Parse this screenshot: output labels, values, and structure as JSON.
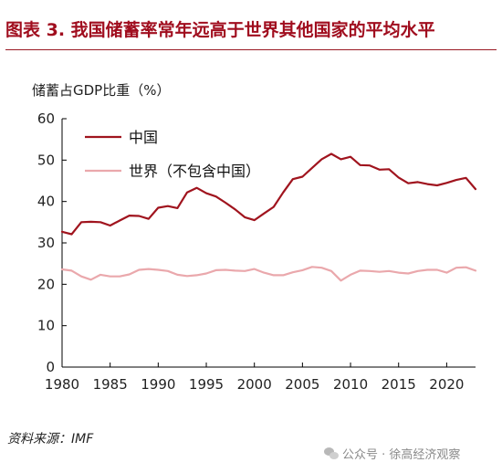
{
  "figure_title": "图表  3.    我国储蓄率常年远高于世界其他国家的平均水平",
  "source": "资料来源：IMF",
  "watermark": "公众号 · 徐高经济观察",
  "colors": {
    "title": "#a00d1e",
    "china": "#a0141e",
    "world": "#eaa8ac"
  },
  "chart_data": {
    "type": "line",
    "title": "",
    "xlabel": "",
    "ylabel": "储蓄占GDP比重（%）",
    "xlim": [
      1980,
      2023
    ],
    "ylim": [
      0,
      60
    ],
    "x_ticks": [
      "1980",
      "1985",
      "1990",
      "1995",
      "2000",
      "2005",
      "2010",
      "2015",
      "2020"
    ],
    "y_ticks": [
      "0",
      "10",
      "20",
      "30",
      "40",
      "50",
      "60"
    ],
    "grid": false,
    "legend_position": "top-left",
    "x": [
      1980,
      1981,
      1982,
      1983,
      1984,
      1985,
      1986,
      1987,
      1988,
      1989,
      1990,
      1991,
      1992,
      1993,
      1994,
      1995,
      1996,
      1997,
      1998,
      1999,
      2000,
      2001,
      2002,
      2003,
      2004,
      2005,
      2006,
      2007,
      2008,
      2009,
      2010,
      2011,
      2012,
      2013,
      2014,
      2015,
      2016,
      2017,
      2018,
      2019,
      2020,
      2021,
      2022,
      2023
    ],
    "series": [
      {
        "name": "中国",
        "color": "#a0141e",
        "values": [
          32.7,
          32.1,
          35.0,
          35.1,
          35.0,
          34.2,
          35.4,
          36.6,
          36.5,
          35.8,
          38.5,
          38.9,
          38.4,
          42.2,
          43.3,
          42.0,
          41.2,
          39.7,
          38.1,
          36.2,
          35.5,
          37.1,
          38.7,
          42.2,
          45.4,
          46.0,
          48.1,
          50.2,
          51.5,
          50.2,
          50.8,
          48.8,
          48.7,
          47.7,
          47.8,
          45.8,
          44.4,
          44.7,
          44.2,
          43.9,
          44.5,
          45.2,
          45.7,
          43.0
        ]
      },
      {
        "name": "世界（不包含中国）",
        "color": "#eaa8ac",
        "values": [
          23.6,
          23.3,
          21.9,
          21.1,
          22.3,
          21.9,
          21.9,
          22.4,
          23.5,
          23.7,
          23.5,
          23.2,
          22.3,
          22.0,
          22.2,
          22.6,
          23.4,
          23.5,
          23.3,
          23.2,
          23.7,
          22.8,
          22.2,
          22.2,
          22.9,
          23.4,
          24.2,
          24.0,
          23.2,
          20.9,
          22.3,
          23.3,
          23.2,
          23.0,
          23.2,
          22.8,
          22.6,
          23.2,
          23.5,
          23.5,
          22.8,
          24.0,
          24.1,
          23.3
        ]
      }
    ]
  }
}
